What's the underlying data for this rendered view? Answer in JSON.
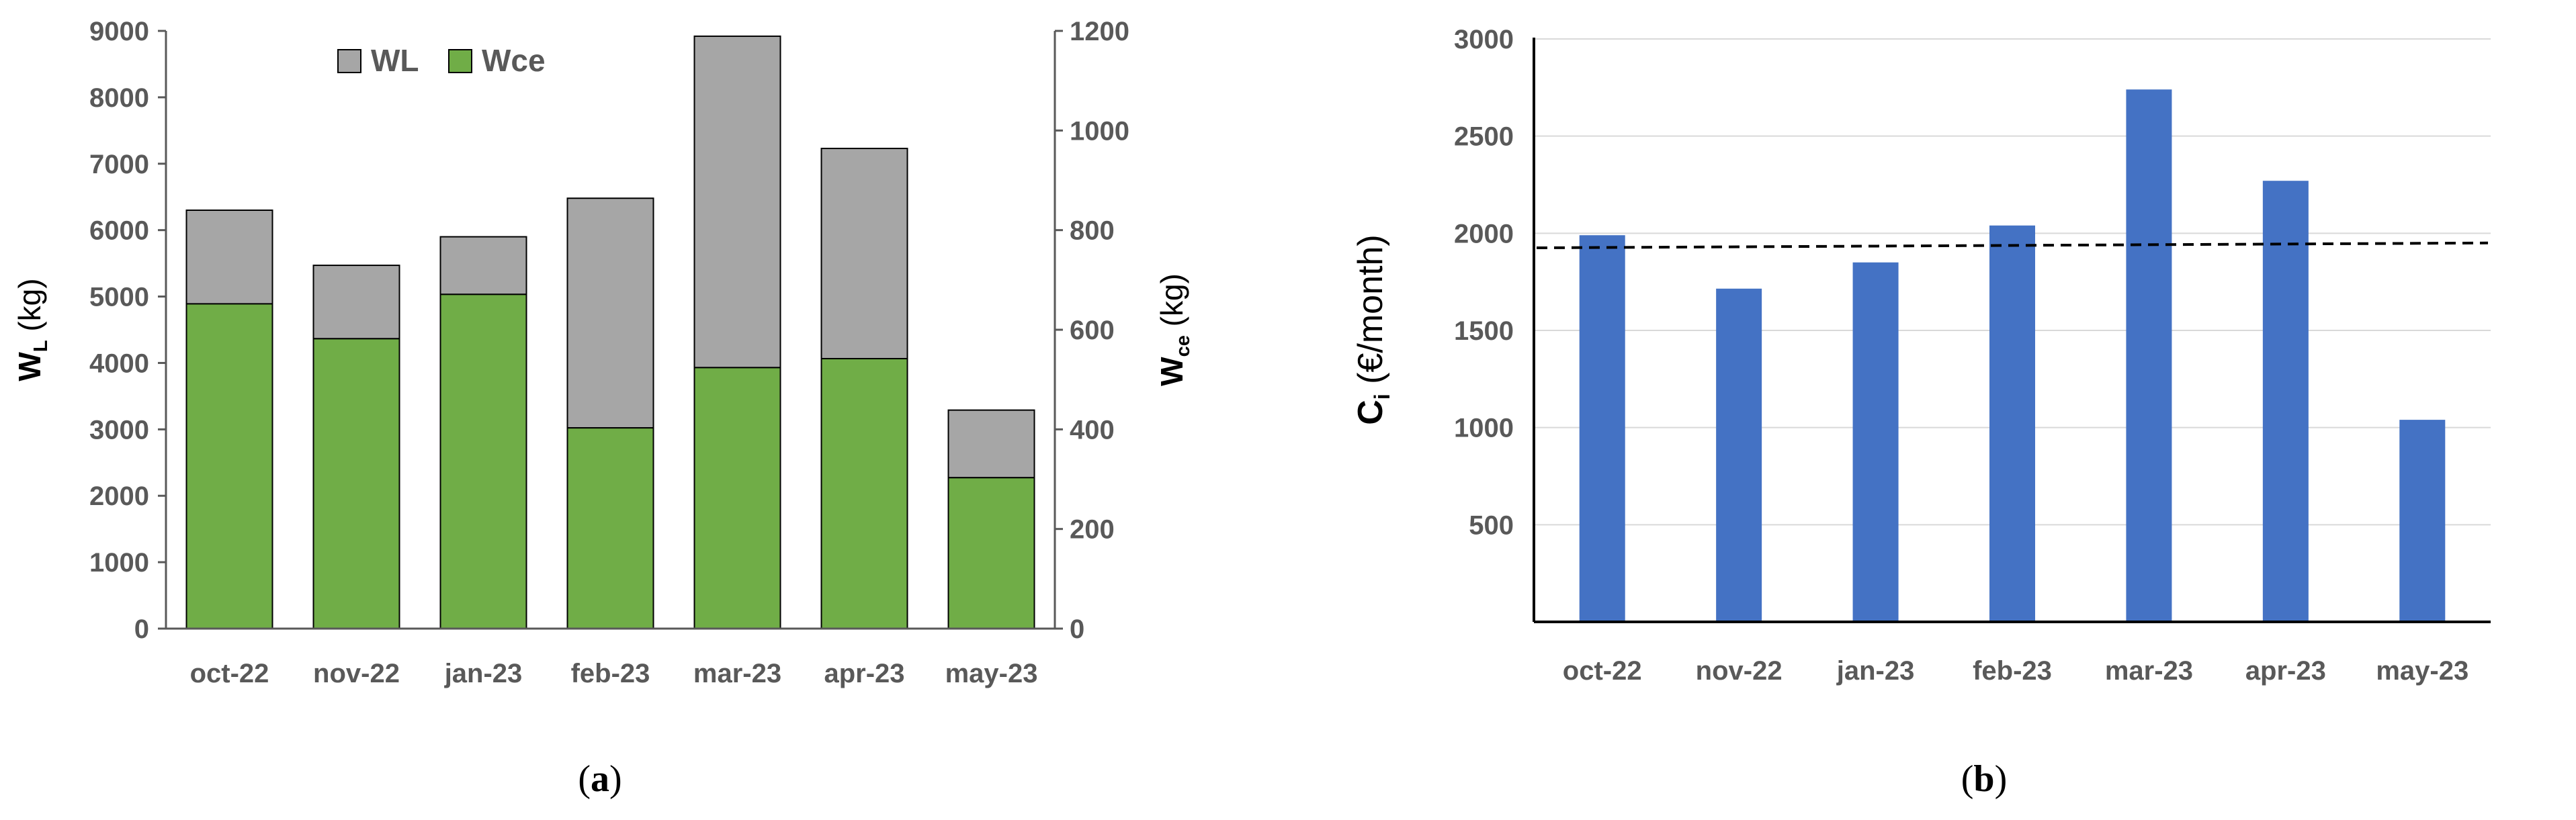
{
  "chart_data": [
    {
      "type": "bar",
      "stacked": true,
      "panel_label": "a",
      "categories": [
        "oct-22",
        "nov-22",
        "jan-23",
        "feb-23",
        "mar-23",
        "apr-23",
        "may-23"
      ],
      "series": [
        {
          "name": "WL",
          "axis": "left",
          "values": [
            6300,
            5470,
            5900,
            6480,
            8920,
            7230,
            3290
          ],
          "color": "#a6a6a6"
        },
        {
          "name": "Wce",
          "axis": "right",
          "values": [
            652,
            582,
            671,
            403,
            524,
            542,
            303
          ],
          "color": "#70ad47"
        }
      ],
      "ylabel_main": "W",
      "ylabel_sub": "L",
      "ylabel_unit": " (kg)",
      "y2label_main": "W",
      "y2label_sub": "ce",
      "y2label_unit": " (kg)",
      "ylim": [
        0,
        9000
      ],
      "y2lim": [
        0,
        1200
      ],
      "yticks": [
        "0",
        "1000",
        "2000",
        "3000",
        "4000",
        "5000",
        "6000",
        "7000",
        "8000",
        "9000"
      ],
      "y2ticks": [
        "0",
        "200",
        "400",
        "600",
        "800",
        "1000",
        "1200"
      ],
      "legend_position": "top-center",
      "grid": false
    },
    {
      "type": "bar",
      "panel_label": "b",
      "categories": [
        "oct-22",
        "nov-22",
        "jan-23",
        "feb-23",
        "mar-23",
        "apr-23",
        "may-23"
      ],
      "values": [
        1990,
        1715,
        1850,
        2040,
        2740,
        2270,
        1040
      ],
      "color": "#4472c4",
      "ylabel_main": "C",
      "ylabel_sub": "i",
      "ylabel_unit": " (€/month)",
      "ylim": [
        0,
        3000
      ],
      "yticks": [
        "500",
        "1000",
        "1500",
        "2000",
        "2500",
        "3000"
      ],
      "trendline": {
        "style": "dashed",
        "start": 1925,
        "end": 1950
      },
      "grid": true
    }
  ]
}
